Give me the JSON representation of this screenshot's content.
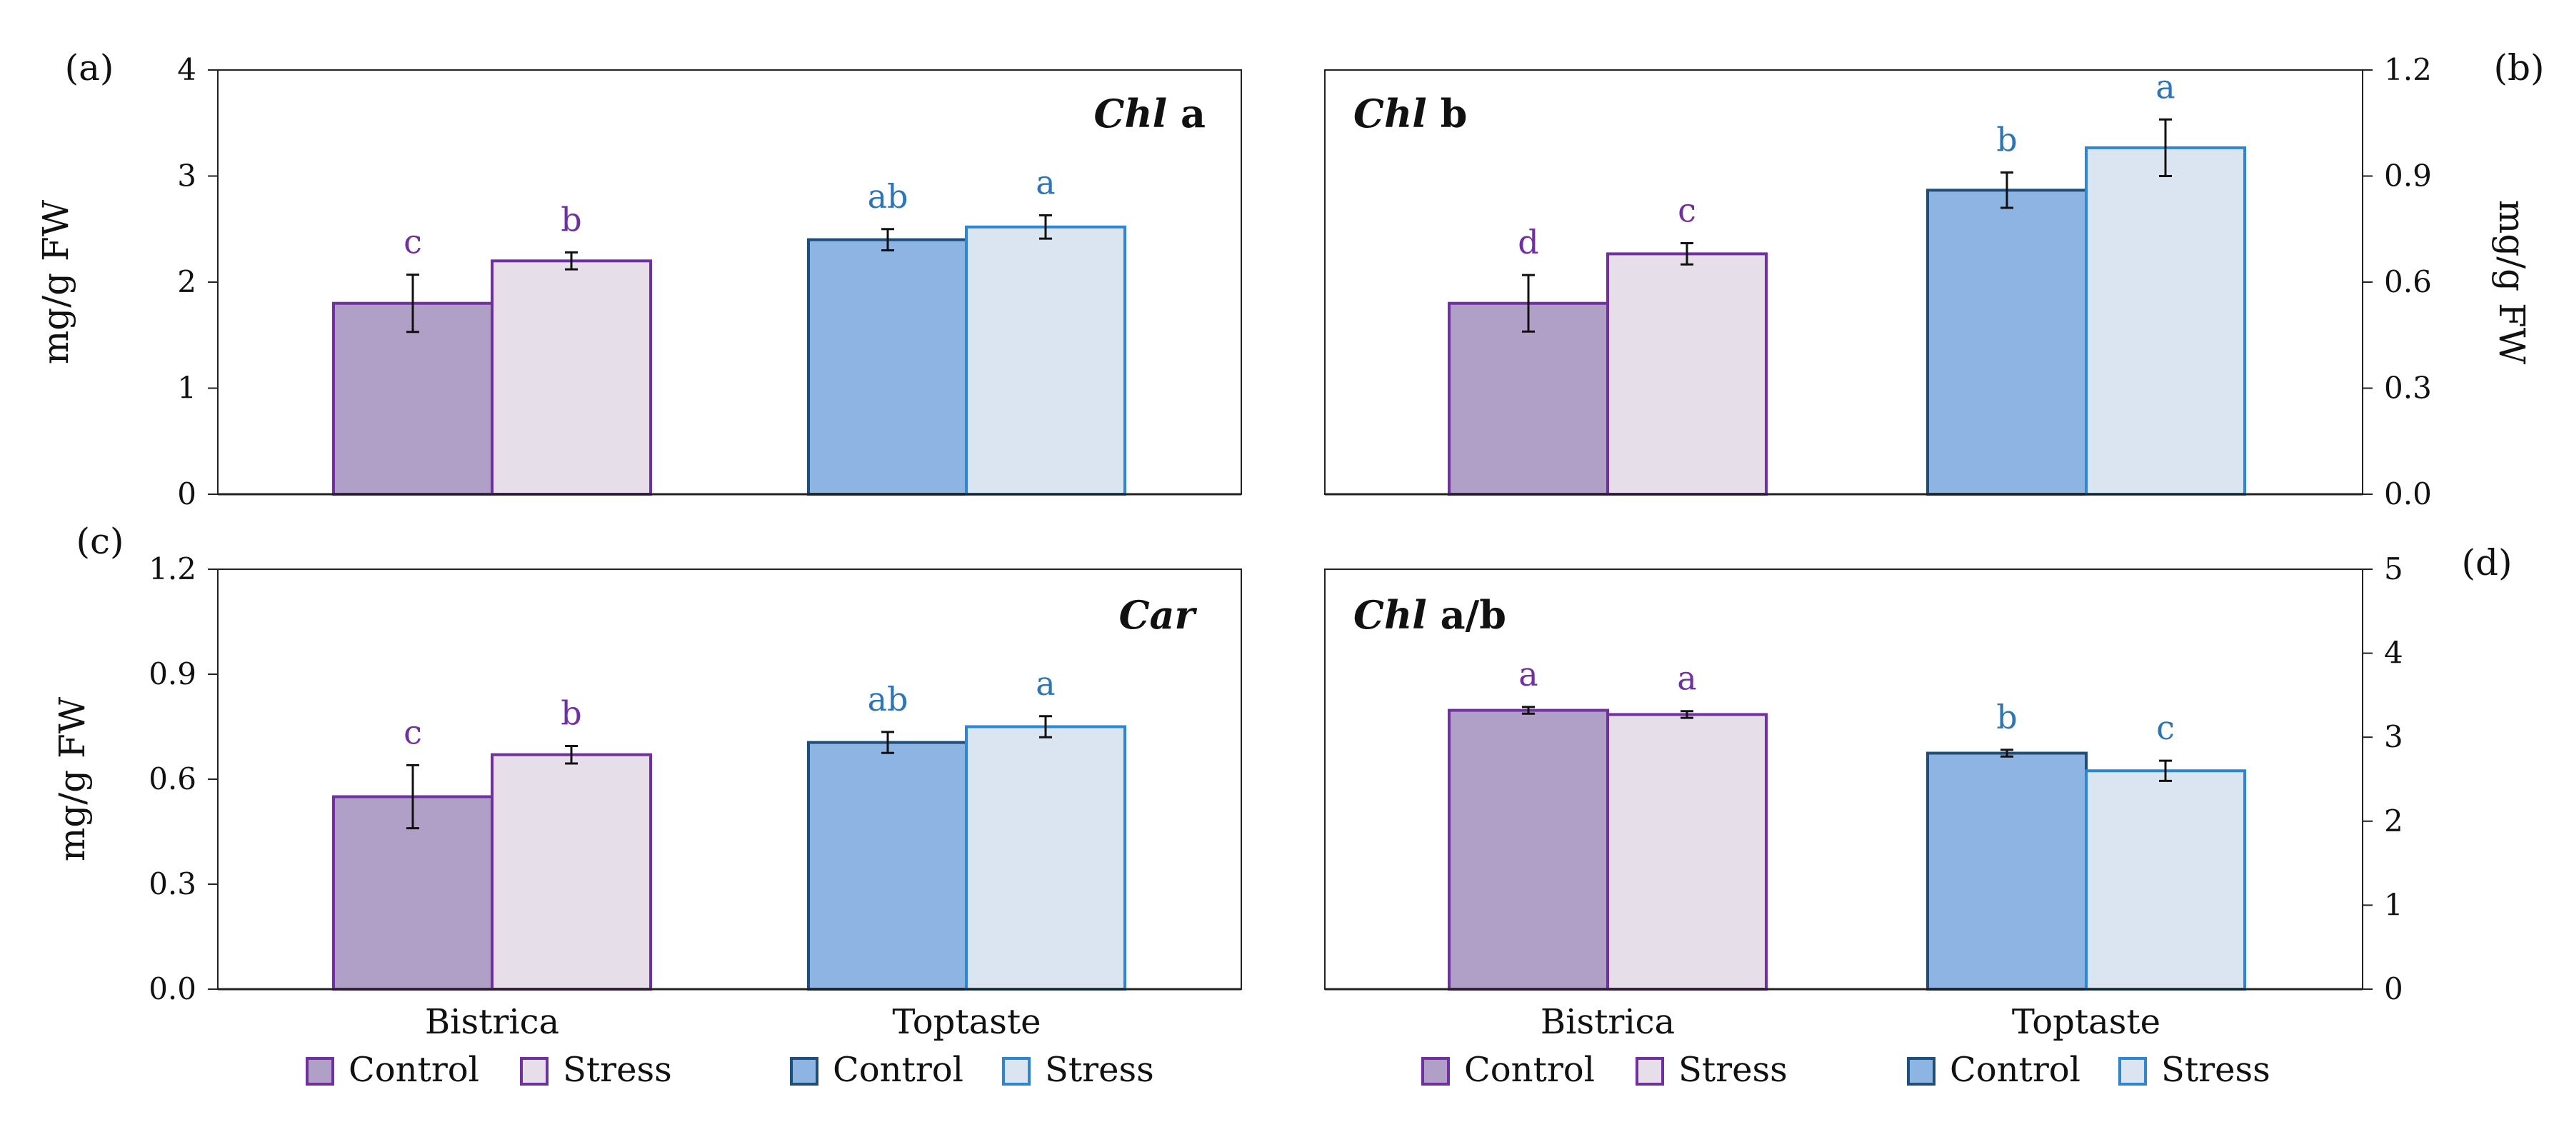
{
  "legend": {
    "bistrica_control": "Control",
    "bistrica_stress": "Stress",
    "toptaste_control": "Control",
    "toptaste_stress": "Stress"
  },
  "colors": {
    "bistrica_control_fill": "#b09fc6",
    "bistrica_control_edge": "#7030a0",
    "bistrica_stress_fill": "#e6dfe9",
    "bistrica_stress_edge": "#7030a0",
    "toptaste_control_fill": "#8eb4e3",
    "toptaste_control_edge": "#1f4e79",
    "toptaste_stress_fill": "#dae5f1",
    "toptaste_stress_edge": "#2e86d0",
    "sig_bistrica": "#7030a0",
    "sig_toptaste": "#2e75b6"
  },
  "chart_data": [
    {
      "type": "bar",
      "panel": "(a)",
      "title_italic": "Chl",
      "title_rest": " a",
      "ylabel": "mg/g FW",
      "ylim": [
        0,
        4
      ],
      "yticks": [
        "0",
        "1",
        "2",
        "3",
        "4"
      ],
      "yaxis_side": "left",
      "categories": [
        "Bistrica",
        "Toptaste"
      ],
      "show_categories": false,
      "series": [
        {
          "name": "Control",
          "values": [
            1.8,
            2.4
          ],
          "errors": [
            0.27,
            0.1
          ],
          "letters": [
            "c",
            "ab"
          ]
        },
        {
          "name": "Stress",
          "values": [
            2.2,
            2.52
          ],
          "errors": [
            0.08,
            0.11
          ],
          "letters": [
            "b",
            "a"
          ]
        }
      ]
    },
    {
      "type": "bar",
      "panel": "(b)",
      "title_italic": "Chl",
      "title_rest": " b",
      "ylabel": "mg/g FW",
      "ylim": [
        0,
        1.2
      ],
      "yticks": [
        "0.0",
        "0.3",
        "0.6",
        "0.9",
        "1.2"
      ],
      "yaxis_side": "right",
      "categories": [
        "Bistrica",
        "Toptaste"
      ],
      "show_categories": false,
      "series": [
        {
          "name": "Control",
          "values": [
            0.54,
            0.86
          ],
          "errors": [
            0.08,
            0.05
          ],
          "letters": [
            "d",
            "b"
          ]
        },
        {
          "name": "Stress",
          "values": [
            0.68,
            0.98
          ],
          "errors": [
            0.03,
            0.08
          ],
          "letters": [
            "c",
            "a"
          ]
        }
      ]
    },
    {
      "type": "bar",
      "panel": "(c)",
      "title_italic": "Car",
      "title_rest": "",
      "ylabel": "mg/g FW",
      "ylim": [
        0,
        1.2
      ],
      "yticks": [
        "0.0",
        "0.3",
        "0.6",
        "0.9",
        "1.2"
      ],
      "yaxis_side": "left",
      "categories": [
        "Bistrica",
        "Toptaste"
      ],
      "show_categories": true,
      "series": [
        {
          "name": "Control",
          "values": [
            0.55,
            0.705
          ],
          "errors": [
            0.09,
            0.03
          ],
          "letters": [
            "c",
            "ab"
          ]
        },
        {
          "name": "Stress",
          "values": [
            0.67,
            0.75
          ],
          "errors": [
            0.025,
            0.03
          ],
          "letters": [
            "b",
            "a"
          ]
        }
      ]
    },
    {
      "type": "bar",
      "panel": "(d)",
      "title_italic": "Chl",
      "title_rest": " a/b",
      "ylabel": "",
      "ylim": [
        0,
        5
      ],
      "yticks": [
        "0",
        "1",
        "2",
        "3",
        "4",
        "5"
      ],
      "yaxis_side": "right",
      "categories": [
        "Bistrica",
        "Toptaste"
      ],
      "show_categories": true,
      "series": [
        {
          "name": "Control",
          "values": [
            3.32,
            2.81
          ],
          "errors": [
            0.04,
            0.04
          ],
          "letters": [
            "a",
            "b"
          ]
        },
        {
          "name": "Stress",
          "values": [
            3.27,
            2.6
          ],
          "errors": [
            0.04,
            0.12
          ],
          "letters": [
            "a",
            "c"
          ]
        }
      ]
    }
  ]
}
